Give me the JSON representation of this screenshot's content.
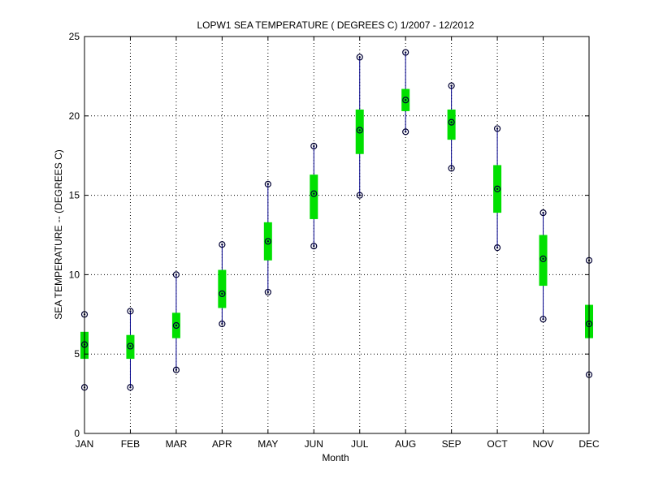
{
  "chart_data": {
    "type": "box",
    "title": "LOPW1  SEA TEMPERATURE ( DEGREES C) 1/2007 - 12/2012",
    "xlabel": "Month",
    "ylabel": "SEA TEMPERATURE -- (DEGREES C)",
    "ylim": [
      0,
      25
    ],
    "yticks": [
      0,
      5,
      10,
      15,
      20,
      25
    ],
    "grid": true,
    "categories": [
      "JAN",
      "FEB",
      "MAR",
      "APR",
      "MAY",
      "JUN",
      "JUL",
      "AUG",
      "SEP",
      "OCT",
      "NOV",
      "DEC"
    ],
    "series": [
      {
        "min": [
          2.9,
          2.9,
          4.0,
          6.9,
          8.9,
          11.8,
          15.0,
          19.0,
          16.7,
          11.7,
          7.2,
          3.7
        ],
        "q1": [
          4.7,
          4.7,
          6.0,
          7.9,
          10.9,
          13.5,
          17.6,
          20.3,
          18.5,
          13.9,
          9.3,
          6.0
        ],
        "median": [
          5.6,
          5.5,
          6.8,
          8.8,
          12.1,
          15.1,
          19.1,
          21.0,
          19.6,
          15.4,
          11.0,
          6.9
        ],
        "q3": [
          6.4,
          6.2,
          7.6,
          10.3,
          13.3,
          16.3,
          20.4,
          21.7,
          20.4,
          16.9,
          12.5,
          8.1
        ],
        "max": [
          7.5,
          7.7,
          10.0,
          11.9,
          15.7,
          18.1,
          23.7,
          24.0,
          21.9,
          19.2,
          13.9,
          10.9
        ]
      }
    ],
    "colors": {
      "whisker": "#00008b",
      "box": "#00e000",
      "marker": "#000033"
    }
  }
}
